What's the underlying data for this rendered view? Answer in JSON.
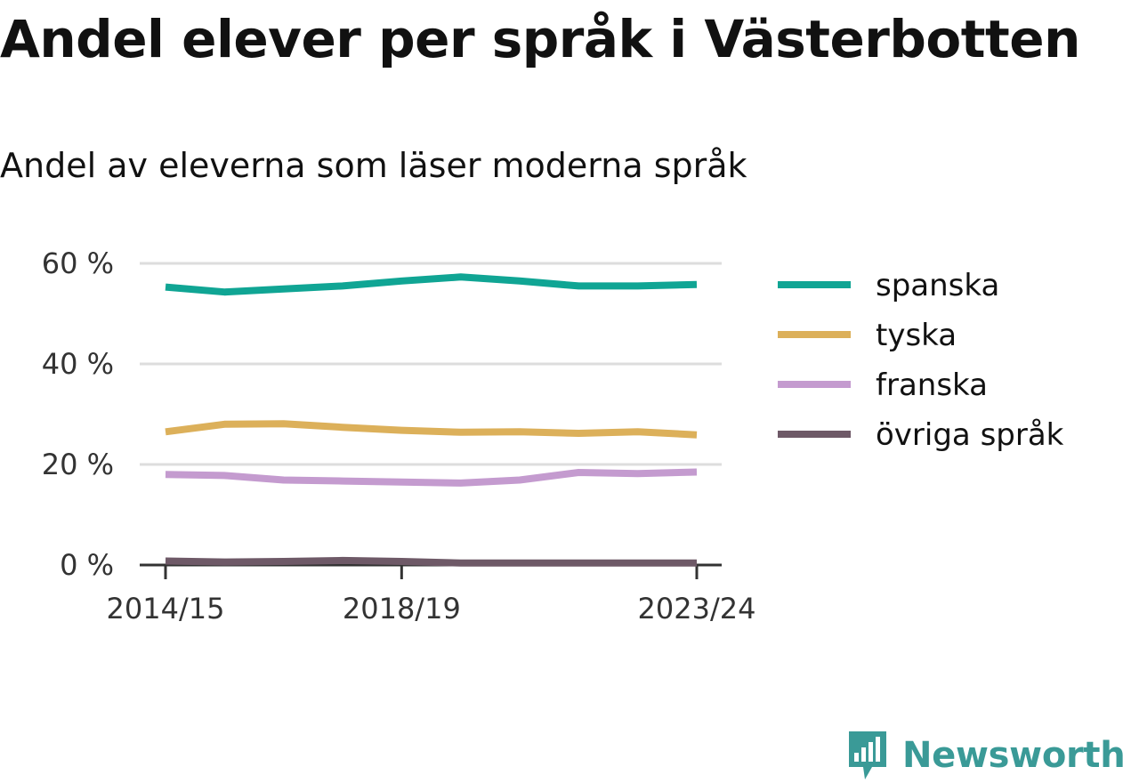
{
  "page": {
    "title": "Andel elever per språk i Västerbotten",
    "subtitle": "Andel av eleverna som läser moderna språk",
    "brand": {
      "name": "Newsworthy",
      "logo_icon": "newsworthy-bar-chart-speech-bubble-icon",
      "color": "#3a9a97"
    }
  },
  "chart_data": {
    "type": "line",
    "x": [
      "2014/15",
      "2015/16",
      "2016/17",
      "2017/18",
      "2018/19",
      "2019/20",
      "2020/21",
      "2021/22",
      "2022/23",
      "2023/24"
    ],
    "x_tick_labels": [
      "2014/15",
      "2018/19",
      "2023/24"
    ],
    "ylim": [
      0,
      60
    ],
    "y_ticks": [
      0,
      20,
      40,
      60
    ],
    "y_tick_labels": [
      "0 %",
      "20 %",
      "40 %",
      "60 %"
    ],
    "grid": true,
    "legend_position": "right",
    "series": [
      {
        "name": "spanska",
        "color": "#10a594",
        "values": [
          55.3,
          54.3,
          54.9,
          55.5,
          56.5,
          57.3,
          56.5,
          55.5,
          55.5,
          55.8
        ]
      },
      {
        "name": "tyska",
        "color": "#dcb05a",
        "values": [
          26.5,
          28.0,
          28.1,
          27.4,
          26.8,
          26.4,
          26.5,
          26.2,
          26.5,
          25.9
        ]
      },
      {
        "name": "franska",
        "color": "#c49bcf",
        "values": [
          18.0,
          17.8,
          16.9,
          16.7,
          16.5,
          16.3,
          16.9,
          18.4,
          18.2,
          18.5
        ]
      },
      {
        "name": "övriga språk",
        "color": "#6e5967",
        "values": [
          0.8,
          0.6,
          0.7,
          0.9,
          0.7,
          0.4,
          0.4,
          0.4,
          0.4,
          0.4
        ]
      }
    ]
  }
}
